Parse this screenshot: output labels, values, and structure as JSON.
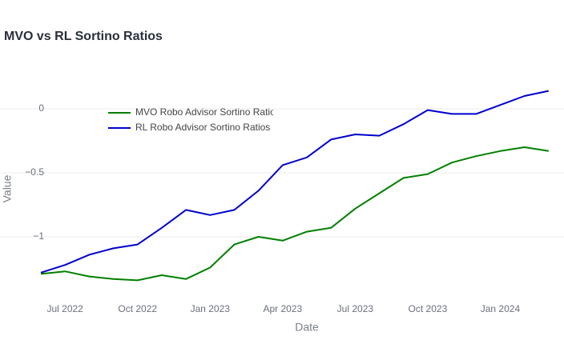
{
  "chart_data": {
    "type": "line",
    "title": "MVO vs RL Sortino Ratios",
    "x_label": "Date",
    "y_label": "Value",
    "x": [
      "2022-06",
      "2022-07",
      "2022-08",
      "2022-09",
      "2022-10",
      "2022-11",
      "2022-12",
      "2023-01",
      "2023-02",
      "2023-03",
      "2023-04",
      "2023-05",
      "2023-06",
      "2023-07",
      "2023-08",
      "2023-09",
      "2023-10",
      "2023-11",
      "2023-12",
      "2024-01",
      "2024-02",
      "2024-03"
    ],
    "series": [
      {
        "name": "MVO Robo Advisor Sortino Ratios",
        "color": "#008000",
        "values": [
          -1.29,
          -1.27,
          -1.31,
          -1.33,
          -1.34,
          -1.3,
          -1.33,
          -1.24,
          -1.06,
          -1.0,
          -1.03,
          -0.96,
          -0.93,
          -0.78,
          -0.66,
          -0.54,
          -0.51,
          -0.42,
          -0.37,
          -0.33,
          -0.3,
          -0.33
        ]
      },
      {
        "name": "RL Robo Advisor Sortino Ratios",
        "color": "#0000cd",
        "values": [
          -1.28,
          -1.22,
          -1.14,
          -1.09,
          -1.06,
          -0.93,
          -0.79,
          -0.83,
          -0.79,
          -0.64,
          -0.44,
          -0.38,
          -0.24,
          -0.2,
          -0.21,
          -0.12,
          -0.01,
          -0.04,
          -0.04,
          0.03,
          0.1,
          0.14
        ]
      }
    ],
    "xlim": [
      "2022-06",
      "2024-04"
    ],
    "xticks": [
      {
        "value": "2022-07",
        "label": "Jul 2022"
      },
      {
        "value": "2022-10",
        "label": "Oct 2022"
      },
      {
        "value": "2023-01",
        "label": "Jan 2023"
      },
      {
        "value": "2023-04",
        "label": "Apr 2023"
      },
      {
        "value": "2023-07",
        "label": "Jul 2023"
      },
      {
        "value": "2023-10",
        "label": "Oct 2023"
      },
      {
        "value": "2024-01",
        "label": "Jan 2024"
      }
    ],
    "ylim": [
      -1.4625,
      0.225
    ],
    "yticks": [
      {
        "value": -1,
        "label": "−1"
      },
      {
        "value": -0.5,
        "label": "−0.5"
      },
      0
    ],
    "grid": true,
    "legend": "top-left"
  }
}
